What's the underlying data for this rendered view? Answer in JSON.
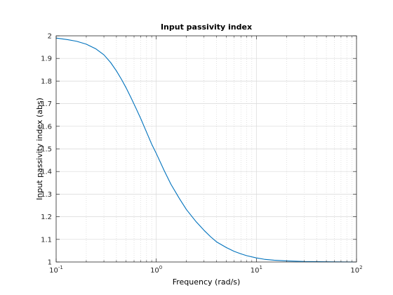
{
  "chart_data": {
    "type": "line",
    "title": "Input passivity index",
    "xlabel": "Frequency (rad/s)",
    "ylabel": "Input passivity index (abs)",
    "xscale": "log",
    "xlim": [
      0.1,
      100
    ],
    "ylim": [
      1,
      2
    ],
    "grid": true,
    "minor_grid": true,
    "x_ticks": [
      {
        "value": 0.1,
        "base": "10",
        "exp": "-1"
      },
      {
        "value": 1,
        "base": "10",
        "exp": "0"
      },
      {
        "value": 10,
        "base": "10",
        "exp": "1"
      },
      {
        "value": 100,
        "base": "10",
        "exp": "2"
      }
    ],
    "y_ticks": [
      1,
      1.1,
      1.2,
      1.3,
      1.4,
      1.5,
      1.6,
      1.7,
      1.8,
      1.9,
      2
    ],
    "line_color": "#0072bd",
    "series": [
      {
        "x": [
          0.1,
          0.13,
          0.16,
          0.2,
          0.25,
          0.3,
          0.35,
          0.4,
          0.45,
          0.5,
          0.56,
          0.63,
          0.7,
          0.8,
          0.9,
          1.0,
          1.2,
          1.4,
          1.7,
          2.0,
          2.5,
          3.0,
          3.5,
          4.0,
          5.0,
          6.0,
          7.0,
          8.0,
          10,
          12,
          15,
          20,
          30,
          50,
          100
        ],
        "y": [
          1.99,
          1.983,
          1.976,
          1.963,
          1.942,
          1.916,
          1.882,
          1.845,
          1.807,
          1.77,
          1.726,
          1.678,
          1.634,
          1.574,
          1.521,
          1.48,
          1.404,
          1.344,
          1.281,
          1.232,
          1.178,
          1.14,
          1.111,
          1.089,
          1.064,
          1.047,
          1.036,
          1.028,
          1.018,
          1.012,
          1.008,
          1.005,
          1.002,
          1.001,
          1.0
        ]
      }
    ]
  }
}
